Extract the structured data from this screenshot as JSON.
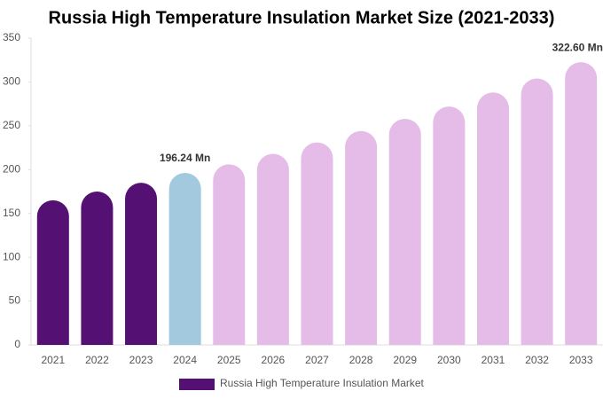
{
  "chart_data": {
    "type": "bar",
    "title": "Russia High Temperature Insulation Market Size (2021-2033)",
    "categories": [
      "2021",
      "2022",
      "2023",
      "2024",
      "2025",
      "2026",
      "2027",
      "2028",
      "2029",
      "2030",
      "2031",
      "2032",
      "2033"
    ],
    "series": [
      {
        "name": "Russia High Temperature Insulation Market",
        "color": "#541173",
        "values": [
          165,
          175,
          185,
          196.24,
          206,
          218,
          231,
          244,
          258,
          272,
          288,
          304,
          322.6
        ],
        "value_labels": [
          null,
          null,
          null,
          "196.24 Mn",
          null,
          null,
          null,
          null,
          null,
          null,
          null,
          null,
          "322.60 Mn"
        ],
        "colors": [
          "#541173",
          "#541173",
          "#541173",
          "#a3c9de",
          "#e5bce8",
          "#e5bce8",
          "#e5bce8",
          "#e5bce8",
          "#e5bce8",
          "#e5bce8",
          "#e5bce8",
          "#e5bce8",
          "#e5bce8"
        ]
      }
    ],
    "ylim": [
      0,
      350
    ],
    "yticks": [
      0,
      50,
      100,
      150,
      200,
      250,
      300,
      350
    ],
    "grid": false
  }
}
